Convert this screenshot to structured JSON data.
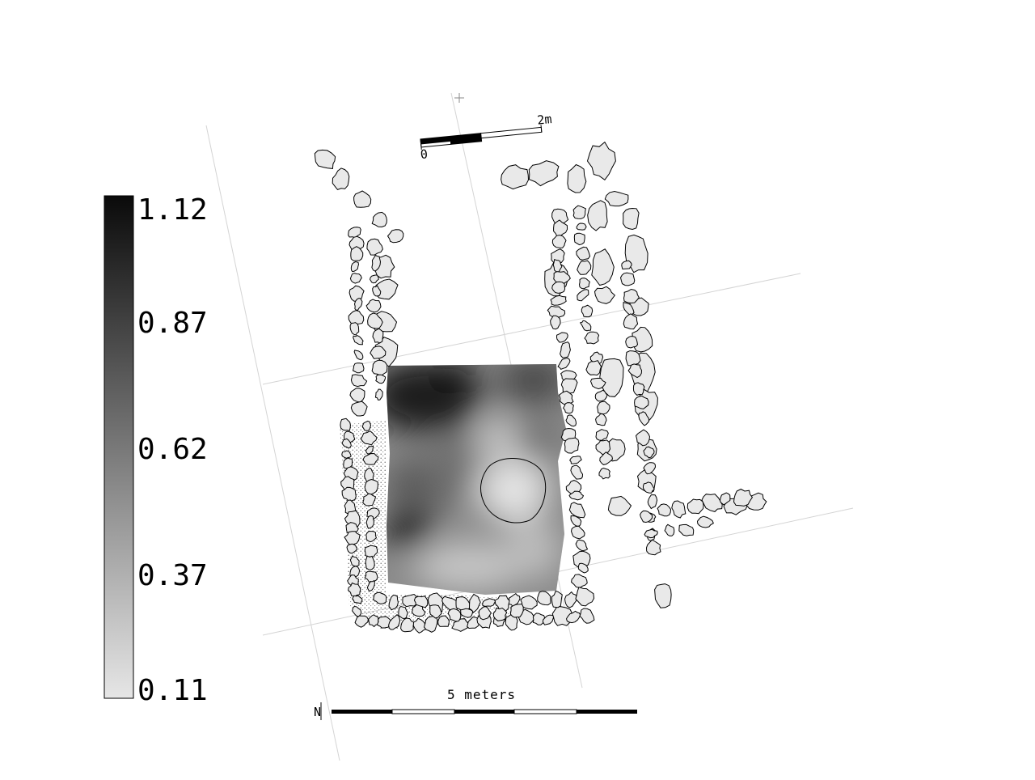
{
  "legend": {
    "labels": [
      "1.12",
      "0.87",
      "0.62",
      "0.37",
      "0.11"
    ],
    "gradient_top_color": "#0a0a0a",
    "gradient_bottom_color": "#e6e6e6"
  },
  "top_scale": {
    "start_label": "0",
    "end_label": "2m"
  },
  "bottom_scale": {
    "title": "5 meters",
    "north_symbol": "N"
  },
  "colors": {
    "stone_fill": "#e9e9e9",
    "stone_stroke": "#000000",
    "grid": "#d4d4d4"
  }
}
